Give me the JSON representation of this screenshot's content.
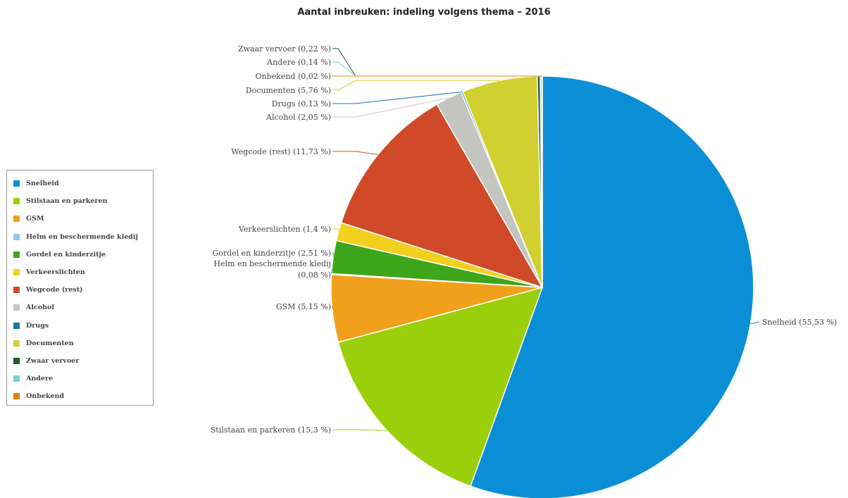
{
  "chart_data": {
    "type": "pie",
    "title": "Aantal inbreuken: indeling volgens thema – 2016",
    "legend_position": "left",
    "slices": [
      {
        "name": "Snelheid",
        "value": 55.53,
        "label": "Snelheid (55,53 %)",
        "color": "#0a8fd6"
      },
      {
        "name": "Stilstaan en parkeren",
        "value": 15.3,
        "label": "Stilstaan en parkeren (15,3 %)",
        "color": "#9bcf0c"
      },
      {
        "name": "GSM",
        "value": 5.15,
        "label": "GSM (5,15 %)",
        "color": "#f0a01a"
      },
      {
        "name": "Helm en beschermende kledij",
        "value": 0.08,
        "label_lines": [
          "Helm en beschermende kledij",
          "(0,08 %)"
        ],
        "color": "#8ec9ec"
      },
      {
        "name": "Gordel en kinderzitje",
        "value": 2.51,
        "label": "Gordel en kinderzitje (2,51 %)",
        "color": "#3da61a"
      },
      {
        "name": "Verkeerslichten",
        "value": 1.4,
        "label": "Verkeerslichten (1,4 %)",
        "color": "#f2d01e"
      },
      {
        "name": "Wegcode (rest)",
        "value": 11.73,
        "label": "Wegcode (rest) (11,73 %)",
        "color": "#d04a2a"
      },
      {
        "name": "Alcohol",
        "value": 2.05,
        "label": "Alcohol (2,05 %)",
        "color": "#c4c4c0"
      },
      {
        "name": "Drugs",
        "value": 0.13,
        "label": "Drugs (0,13 %)",
        "color": "#1b78a8"
      },
      {
        "name": "Documenten",
        "value": 5.76,
        "label": "Documenten (5,76 %)",
        "color": "#d0d030"
      },
      {
        "name": "Zwaar vervoer",
        "value": 0.22,
        "label": "Zwaar vervoer (0,22 %)",
        "color": "#1e5a28"
      },
      {
        "name": "Andere",
        "value": 0.14,
        "label": "Andere (0,14 %)",
        "color": "#7ad0dc"
      },
      {
        "name": "Onbekend",
        "value": 0.02,
        "label": "Onbekend (0,02 %)",
        "color": "#e88010"
      }
    ],
    "legend": [
      {
        "label": "Snelheid",
        "color": "#0a8fd6"
      },
      {
        "label": "Stilstaan en parkeren",
        "color": "#9bcf0c"
      },
      {
        "label": "GSM",
        "color": "#f0a01a"
      },
      {
        "label": "Helm en beschermende kledij",
        "color": "#8ec9ec"
      },
      {
        "label": "Gordel en kinderzitje",
        "color": "#3da61a"
      },
      {
        "label": "Verkeerslichten",
        "color": "#f2d01e"
      },
      {
        "label": "Wegcode (rest)",
        "color": "#d04a2a"
      },
      {
        "label": "Alcohol",
        "color": "#c4c4c0"
      },
      {
        "label": "Drugs",
        "color": "#1b78a8"
      },
      {
        "label": "Documenten",
        "color": "#d0d030"
      },
      {
        "label": "Zwaar vervoer",
        "color": "#1e5a28"
      },
      {
        "label": "Andere",
        "color": "#7ad0dc"
      },
      {
        "label": "Onbekend",
        "color": "#e88010"
      }
    ]
  }
}
